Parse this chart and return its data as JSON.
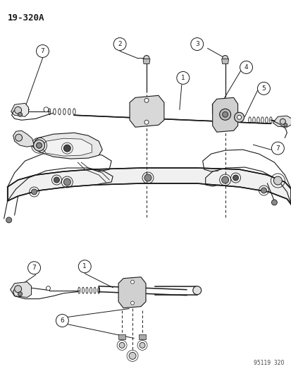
{
  "title": "19-320A",
  "watermark": "95119  320",
  "bg_color": "#ffffff",
  "line_color": "#1a1a1a",
  "fig_width": 4.14,
  "fig_height": 5.33,
  "dpi": 100
}
